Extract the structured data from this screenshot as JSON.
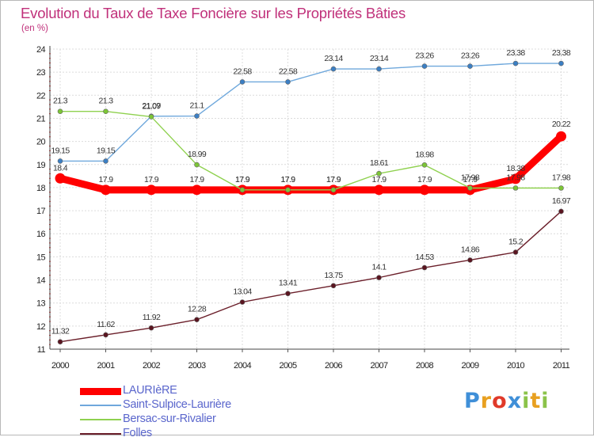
{
  "title": "Evolution du Taux de Taxe Foncière sur les Propriétés Bâties",
  "unit_label": "(en %)",
  "logo": {
    "text": "Proxiti",
    "letters": [
      {
        "ch": "P",
        "color": "#3f8fd8"
      },
      {
        "ch": "r",
        "color": "#e8a020"
      },
      {
        "ch": "o",
        "color": "#e03a2a"
      },
      {
        "ch": "x",
        "color": "#3f8fd8"
      },
      {
        "ch": "i",
        "color": "#8bc34a"
      },
      {
        "ch": "t",
        "color": "#e8a020"
      },
      {
        "ch": "i",
        "color": "#8bc34a"
      }
    ]
  },
  "chart_data": {
    "type": "line",
    "title": "Evolution du Taux de Taxe Foncière sur les Propriétés Bâties",
    "ylabel": "(en %)",
    "xlabel": "",
    "x": [
      "2000",
      "2001",
      "2002",
      "2003",
      "2004",
      "2005",
      "2006",
      "2007",
      "2008",
      "2009",
      "2010",
      "2011"
    ],
    "ylim": [
      11,
      24
    ],
    "yticks": [
      "11",
      "12",
      "13",
      "14",
      "15",
      "16",
      "17",
      "18",
      "19",
      "20",
      "21",
      "22",
      "23",
      "24"
    ],
    "grid": true,
    "legend_position": "bottom-left",
    "series": [
      {
        "name": "LAURIèRE",
        "color": "#ff0000",
        "values": [
          18.4,
          17.9,
          17.9,
          17.9,
          17.9,
          17.9,
          17.9,
          17.9,
          17.9,
          17.9,
          18.38,
          20.22
        ],
        "labels": [
          "18.4",
          "17.9",
          "17.9",
          "17.9",
          "17.9",
          "17.9",
          "17.9",
          "17.9",
          "17.9",
          "17.9",
          "18.38",
          "20.22"
        ]
      },
      {
        "name": "Saint-Sulpice-Laurière",
        "color": "#6fa8dc",
        "values": [
          19.15,
          19.15,
          21.09,
          21.1,
          22.58,
          22.58,
          23.14,
          23.14,
          23.26,
          23.26,
          23.38,
          23.38
        ],
        "labels": [
          "19.15",
          "19.15",
          "21.09",
          "21.1",
          "22.58",
          "22.58",
          "23.14",
          "23.14",
          "23.26",
          "23.26",
          "23.38",
          "23.38"
        ]
      },
      {
        "name": "Bersac-sur-Rivalier",
        "color": "#8fd14f",
        "values": [
          21.3,
          21.3,
          21.07,
          18.99,
          17.9,
          17.9,
          17.9,
          18.61,
          18.98,
          17.98,
          17.98,
          17.98
        ],
        "labels": [
          "21.3",
          "21.3",
          "21.07",
          "18.99",
          "17.9",
          "17.9",
          "17.9",
          "18.61",
          "18.98",
          "17.98",
          "17.98",
          "17.98"
        ]
      },
      {
        "name": "Folles",
        "color": "#6b1f2a",
        "values": [
          11.32,
          11.62,
          11.92,
          12.28,
          13.04,
          13.41,
          13.75,
          14.1,
          14.53,
          14.86,
          15.2,
          16.97
        ],
        "labels": [
          "11.32",
          "11.62",
          "11.92",
          "12.28",
          "13.04",
          "13.41",
          "13.75",
          "14.1",
          "14.53",
          "14.86",
          "15.2",
          "16.97"
        ]
      }
    ]
  }
}
